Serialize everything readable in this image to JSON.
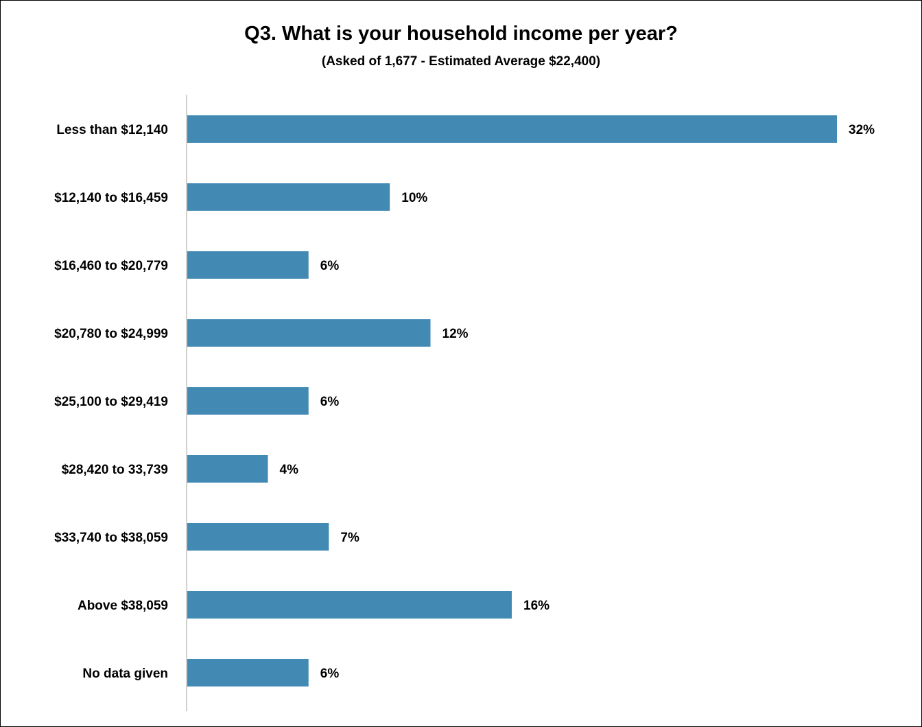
{
  "chart_data": {
    "type": "bar",
    "orientation": "horizontal",
    "title": "Q3. What is your household income per year?",
    "subtitle": "(Asked of 1,677 - Estimated Average $22,400)",
    "categories": [
      "Less than $12,140",
      "$12,140 to $16,459",
      "$16,460 to $20,779",
      "$20,780 to $24,999",
      "$25,100 to $29,419",
      "$28,420 to 33,739",
      "$33,740 to $38,059",
      "Above $38,059",
      "No data given"
    ],
    "values": [
      32,
      10,
      6,
      12,
      6,
      4,
      7,
      16,
      6
    ],
    "data_labels": [
      "32%",
      "10%",
      "6%",
      "12%",
      "6%",
      "4%",
      "7%",
      "16%",
      "6%"
    ],
    "xlim": [
      0,
      32
    ],
    "grid": false,
    "legend": "none",
    "bar_color": "#428ab4",
    "axis_color": "#d0d0d0"
  }
}
